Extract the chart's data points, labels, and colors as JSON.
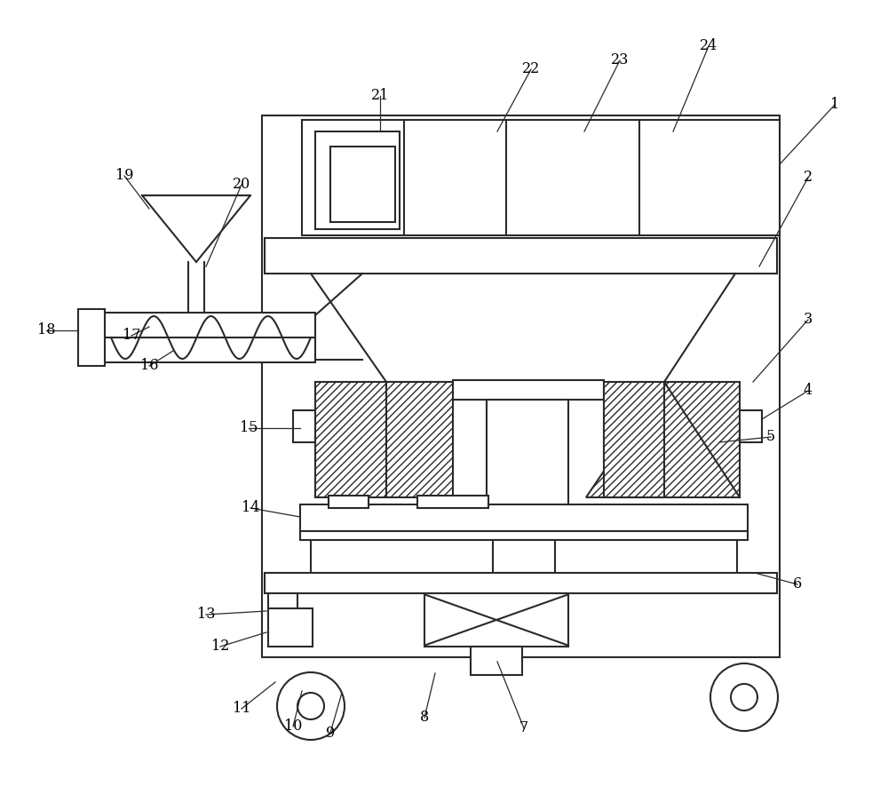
{
  "bg_color": "#ffffff",
  "lc": "#2a2a2a",
  "lw": 1.5,
  "labels": [
    [
      "1",
      940,
      118,
      878,
      185
    ],
    [
      "2",
      910,
      200,
      855,
      300
    ],
    [
      "3",
      910,
      360,
      848,
      430
    ],
    [
      "4",
      910,
      440,
      858,
      472
    ],
    [
      "5",
      868,
      492,
      810,
      498
    ],
    [
      "6",
      898,
      658,
      850,
      645
    ],
    [
      "7",
      590,
      820,
      560,
      745
    ],
    [
      "8",
      478,
      808,
      490,
      758
    ],
    [
      "9",
      372,
      825,
      385,
      780
    ],
    [
      "10",
      330,
      818,
      340,
      778
    ],
    [
      "11",
      272,
      798,
      310,
      768
    ],
    [
      "12",
      248,
      728,
      300,
      712
    ],
    [
      "13",
      232,
      692,
      300,
      688
    ],
    [
      "14",
      282,
      572,
      338,
      582
    ],
    [
      "15",
      280,
      482,
      338,
      482
    ],
    [
      "16",
      168,
      412,
      195,
      395
    ],
    [
      "17",
      148,
      378,
      168,
      368
    ],
    [
      "18",
      52,
      372,
      88,
      372
    ],
    [
      "19",
      140,
      198,
      168,
      235
    ],
    [
      "20",
      272,
      208,
      232,
      300
    ],
    [
      "21",
      428,
      108,
      428,
      148
    ],
    [
      "22",
      598,
      78,
      560,
      148
    ],
    [
      "23",
      698,
      68,
      658,
      148
    ],
    [
      "24",
      798,
      52,
      758,
      148
    ]
  ]
}
